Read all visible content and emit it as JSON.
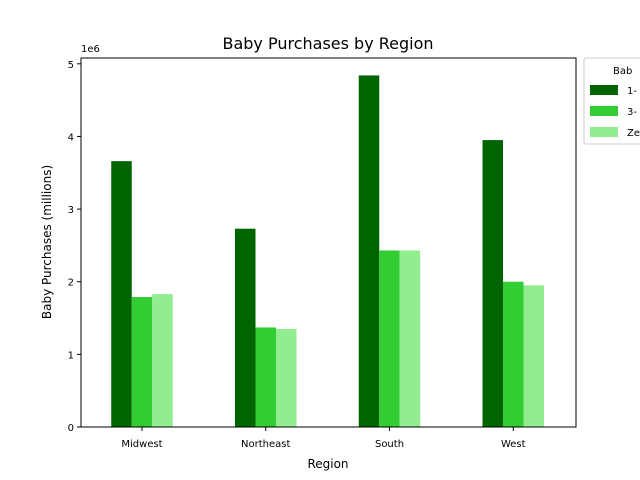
{
  "chart_data": {
    "type": "bar",
    "title": "Baby Purchases by Region",
    "xlabel": "Region",
    "ylabel": "Baby Purchases (millions)",
    "y_offset_label": "1e6",
    "categories": [
      "Midwest",
      "Northeast",
      "South",
      "West"
    ],
    "ylim": [
      0,
      5080000
    ],
    "yticks": [
      0,
      1,
      2,
      3,
      4,
      5
    ],
    "ytick_labels": [
      "0",
      "1",
      "2",
      "3",
      "4",
      "5"
    ],
    "grid": false,
    "legend": {
      "title": "Bab",
      "placement": "outside-top-right",
      "entries": [
        "1-",
        "3-",
        "Ze"
      ]
    },
    "series": [
      {
        "label": "1-",
        "color": "#006400",
        "values": [
          3660000,
          2730000,
          4840000,
          3950000
        ]
      },
      {
        "label": "3-",
        "color": "#32cd32",
        "values": [
          1790000,
          1370000,
          2430000,
          2000000
        ]
      },
      {
        "label": "Ze",
        "color": "#90ee90",
        "values": [
          1830000,
          1350000,
          2430000,
          1950000
        ]
      }
    ]
  }
}
